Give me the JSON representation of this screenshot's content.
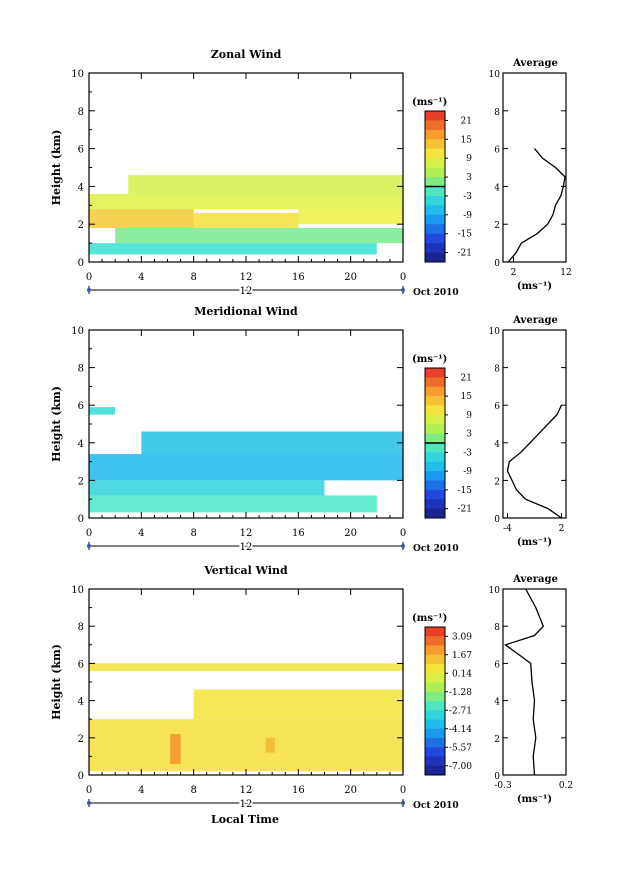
{
  "footer": {
    "xlabel": "Local Time"
  },
  "chart_data": [
    {
      "type": "heatmap",
      "title": "Zonal Wind",
      "ylabel": "Height (km)",
      "xlim": [
        0,
        24
      ],
      "ylim": [
        0,
        10
      ],
      "x_ticks": [
        "0",
        "4",
        "8",
        "12",
        "16",
        "20",
        "0"
      ],
      "y_ticks": [
        "0",
        "2",
        "4",
        "6",
        "8",
        "10"
      ],
      "date_marker": "12",
      "date_label": "Oct 2010",
      "colorbar": {
        "unit": "(ms⁻¹)",
        "ticks": [
          "21",
          "15",
          "9",
          "3",
          "-3",
          "-9",
          "-15",
          "-21"
        ],
        "range": [
          -24,
          24
        ],
        "zero_line": true
      },
      "cells": [
        {
          "x": [
            0,
            22
          ],
          "y": [
            0.4,
            1.0
          ],
          "v": -3
        },
        {
          "x": [
            2,
            24
          ],
          "y": [
            1.0,
            1.8
          ],
          "v": 1
        },
        {
          "x": [
            0,
            8
          ],
          "y": [
            1.8,
            2.8
          ],
          "v": 13
        },
        {
          "x": [
            8,
            16
          ],
          "y": [
            1.8,
            2.6
          ],
          "v": 11
        },
        {
          "x": [
            16,
            24
          ],
          "y": [
            2.0,
            2.8
          ],
          "v": 9
        },
        {
          "x": [
            0,
            24
          ],
          "y": [
            2.8,
            3.6
          ],
          "v": 8
        },
        {
          "x": [
            3,
            24
          ],
          "y": [
            3.6,
            4.6
          ],
          "v": 7
        }
      ],
      "average": {
        "title": "Average",
        "xlabel": "(ms⁻¹)",
        "x_ticks": [
          "2",
          "12"
        ],
        "xlim": [
          0,
          12
        ],
        "ylim": [
          0,
          10
        ],
        "y_ticks": [
          "0",
          "2",
          "4",
          "6",
          "8",
          "10"
        ],
        "profile": [
          {
            "h": 0.0,
            "v": 1.0
          },
          {
            "h": 0.5,
            "v": 2.5
          },
          {
            "h": 1.0,
            "v": 3.5
          },
          {
            "h": 1.5,
            "v": 6.5
          },
          {
            "h": 2.0,
            "v": 8.5
          },
          {
            "h": 2.5,
            "v": 9.5
          },
          {
            "h": 3.0,
            "v": 10.0
          },
          {
            "h": 3.5,
            "v": 11.0
          },
          {
            "h": 4.0,
            "v": 11.5
          },
          {
            "h": 4.5,
            "v": 11.8
          },
          {
            "h": 5.0,
            "v": 10.0
          },
          {
            "h": 5.5,
            "v": 7.5
          },
          {
            "h": 6.0,
            "v": 6.0
          }
        ]
      }
    },
    {
      "type": "heatmap",
      "title": "Meridional Wind",
      "ylabel": "Height (km)",
      "xlim": [
        0,
        24
      ],
      "ylim": [
        0,
        10
      ],
      "x_ticks": [
        "0",
        "4",
        "8",
        "12",
        "16",
        "20",
        "0"
      ],
      "y_ticks": [
        "0",
        "2",
        "4",
        "6",
        "8",
        "10"
      ],
      "date_marker": "12",
      "date_label": "Oct 2010",
      "colorbar": {
        "unit": "(ms⁻¹)",
        "ticks": [
          "21",
          "15",
          "9",
          "3",
          "-3",
          "-9",
          "-15",
          "-21"
        ],
        "range": [
          -24,
          24
        ],
        "zero_line": true
      },
      "cells": [
        {
          "x": [
            0,
            22
          ],
          "y": [
            0.3,
            1.2
          ],
          "v": -2
        },
        {
          "x": [
            0,
            18
          ],
          "y": [
            1.2,
            2.0
          ],
          "v": -5
        },
        {
          "x": [
            0,
            24
          ],
          "y": [
            2.0,
            3.4
          ],
          "v": -8
        },
        {
          "x": [
            4,
            24
          ],
          "y": [
            3.4,
            4.6
          ],
          "v": -7
        },
        {
          "x": [
            0,
            2
          ],
          "y": [
            5.5,
            5.9
          ],
          "v": -4
        }
      ],
      "average": {
        "title": "Average",
        "xlabel": "(ms⁻¹)",
        "x_ticks": [
          "-4",
          "2"
        ],
        "xlim": [
          -4.5,
          2.5
        ],
        "ylim": [
          0,
          10
        ],
        "y_ticks": [
          "0",
          "2",
          "4",
          "6",
          "8",
          "10"
        ],
        "profile": [
          {
            "h": 0.0,
            "v": 2.0
          },
          {
            "h": 0.5,
            "v": 0.5
          },
          {
            "h": 1.0,
            "v": -2.0
          },
          {
            "h": 1.5,
            "v": -3.0
          },
          {
            "h": 2.0,
            "v": -3.5
          },
          {
            "h": 2.5,
            "v": -4.0
          },
          {
            "h": 3.0,
            "v": -3.8
          },
          {
            "h": 3.5,
            "v": -2.5
          },
          {
            "h": 4.0,
            "v": -1.5
          },
          {
            "h": 4.5,
            "v": -0.5
          },
          {
            "h": 5.0,
            "v": 0.5
          },
          {
            "h": 5.5,
            "v": 1.5
          },
          {
            "h": 6.0,
            "v": 2.0
          }
        ]
      }
    },
    {
      "type": "heatmap",
      "title": "Vertical Wind",
      "ylabel": "Height (km)",
      "xlim": [
        0,
        24
      ],
      "ylim": [
        0,
        10
      ],
      "x_ticks": [
        "0",
        "4",
        "8",
        "12",
        "16",
        "20",
        "0"
      ],
      "y_ticks": [
        "0",
        "2",
        "4",
        "6",
        "8",
        "10"
      ],
      "date_marker": "12",
      "date_label": "Oct 2010",
      "colorbar": {
        "unit": "(ms⁻¹)",
        "ticks": [
          "3.09",
          "1.67",
          "0.14",
          "-1.28",
          "-2.71",
          "-4.14",
          "-5.57",
          "-7.00"
        ],
        "range": [
          -7.6,
          3.6
        ],
        "zero_line": false
      },
      "cells": [
        {
          "x": [
            0,
            24
          ],
          "y": [
            0.2,
            3.0
          ],
          "v": 0.6
        },
        {
          "x": [
            6.2,
            7.0
          ],
          "y": [
            0.6,
            2.2
          ],
          "v": 2.0
        },
        {
          "x": [
            13.5,
            14.2
          ],
          "y": [
            1.2,
            2.0
          ],
          "v": 1.4
        },
        {
          "x": [
            8,
            24
          ],
          "y": [
            3.0,
            4.6
          ],
          "v": 0.5
        },
        {
          "x": [
            0,
            24
          ],
          "y": [
            5.6,
            6.0
          ],
          "v": 0.5
        }
      ],
      "average": {
        "title": "Average",
        "xlabel": "(ms⁻¹)",
        "x_ticks": [
          "-0.3",
          "0.2"
        ],
        "xlim": [
          -0.3,
          0.2
        ],
        "ylim": [
          0,
          10
        ],
        "y_ticks": [
          "0",
          "2",
          "4",
          "6",
          "8",
          "10"
        ],
        "profile": [
          {
            "h": 0.0,
            "v": -0.05
          },
          {
            "h": 1.0,
            "v": -0.06
          },
          {
            "h": 2.0,
            "v": -0.04
          },
          {
            "h": 3.0,
            "v": -0.06
          },
          {
            "h": 4.0,
            "v": -0.05
          },
          {
            "h": 5.0,
            "v": -0.07
          },
          {
            "h": 6.0,
            "v": -0.08
          },
          {
            "h": 7.0,
            "v": -0.28
          },
          {
            "h": 7.5,
            "v": -0.05
          },
          {
            "h": 8.0,
            "v": 0.02
          },
          {
            "h": 9.0,
            "v": -0.04
          },
          {
            "h": 10.0,
            "v": -0.12
          }
        ]
      }
    }
  ]
}
